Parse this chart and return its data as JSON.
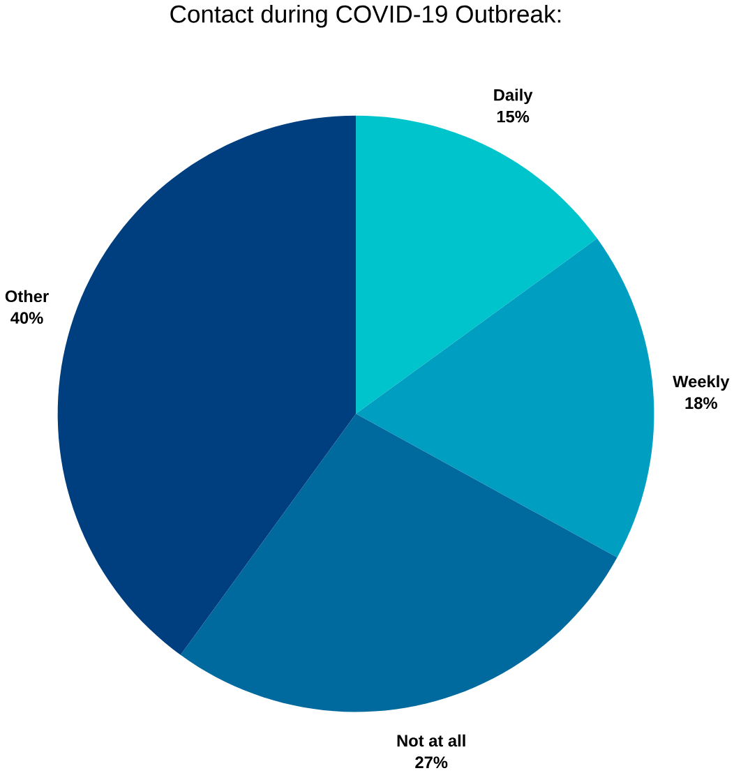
{
  "chart_data": {
    "type": "pie",
    "title": "Contact during COVID-19 Outbreak:",
    "categories": [
      "Daily",
      "Weekly",
      "Not at all",
      "Other"
    ],
    "values": [
      15,
      18,
      27,
      40
    ],
    "value_labels": [
      "15%",
      "18%",
      "27%",
      "40%"
    ],
    "colors": [
      "#00c4cc",
      "#009fc2",
      "#006a9e",
      "#003f7f"
    ]
  }
}
